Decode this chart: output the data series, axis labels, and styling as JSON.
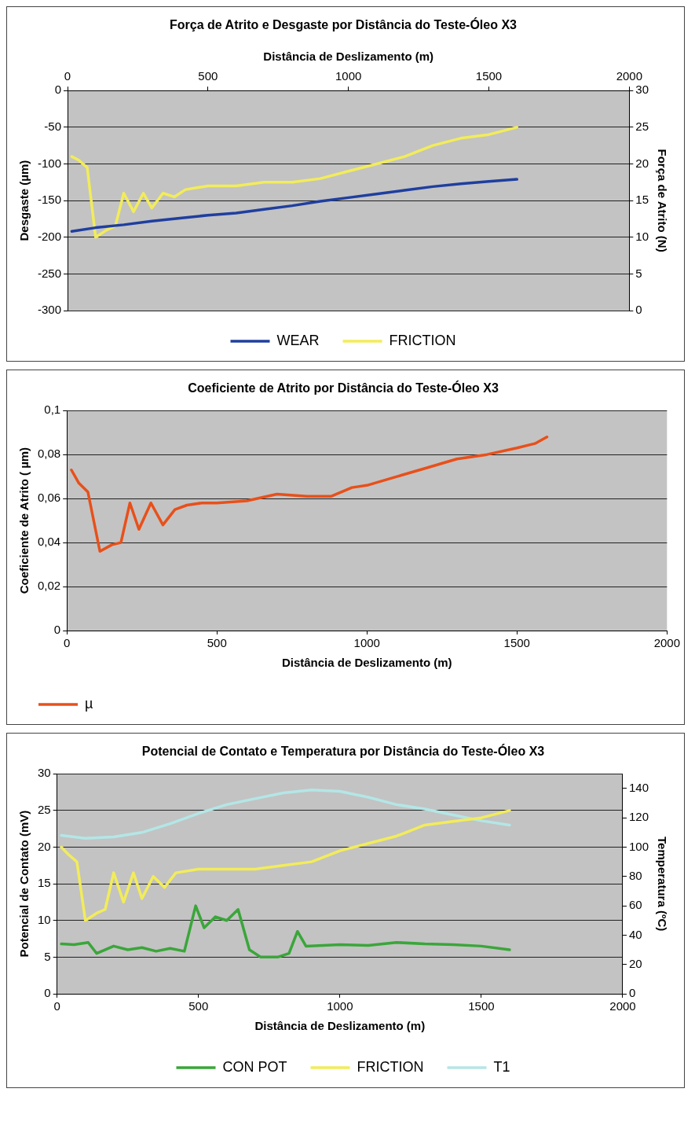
{
  "chart_data": [
    {
      "type": "line",
      "title": "Força de Atrito e Desgaste por Distância do Teste-Óleo X3",
      "xlabel": "Distância de Deslizamento (m)",
      "ylabel": "Desgaste (µm)",
      "y2label": "Força de Atrito (N)",
      "xlim": [
        0,
        2000
      ],
      "xticks": [
        0,
        500,
        1000,
        1500,
        2000
      ],
      "ylim": [
        -300,
        0
      ],
      "yticks": [
        -300,
        -250,
        -200,
        -150,
        -100,
        -50,
        0
      ],
      "y2lim": [
        0,
        30
      ],
      "y2ticks": [
        0,
        5,
        10,
        15,
        20,
        25,
        30
      ],
      "grid": "y",
      "legend": "bottom",
      "marker": "none",
      "line_style": "solid",
      "series": [
        {
          "name": "WEAR",
          "color": "#1f3f9f",
          "x": [
            15,
            100,
            200,
            300,
            400,
            500,
            600,
            700,
            800,
            900,
            1000,
            1100,
            1200,
            1300,
            1400,
            1500,
            1600
          ],
          "values": [
            -192,
            -187,
            -183,
            -178,
            -174,
            -170,
            -167,
            -162,
            -157,
            -151,
            -146,
            -141,
            -136,
            -131,
            -127,
            -124,
            -121
          ]
        },
        {
          "name": "FRICTION",
          "color": "#f2ec5a",
          "axis": "y2",
          "x": [
            15,
            40,
            70,
            100,
            140,
            170,
            200,
            235,
            270,
            300,
            340,
            380,
            420,
            500,
            600,
            700,
            800,
            900,
            1000,
            1100,
            1200,
            1300,
            1400,
            1500,
            1600
          ],
          "values": [
            21,
            20.5,
            19.5,
            10,
            11,
            11.5,
            16,
            13.5,
            16,
            14,
            16,
            15.5,
            16.5,
            17,
            17,
            17.5,
            17.5,
            18,
            19,
            20,
            21,
            22.5,
            23.5,
            24,
            25
          ]
        }
      ]
    },
    {
      "type": "line",
      "title": "Coeficiente de Atrito por Distância do Teste-Óleo X3",
      "xlabel": "Distância de Deslizamento (m)",
      "ylabel": "Coeficiente de Atrito ( µm)",
      "xlim": [
        0,
        2000
      ],
      "xticks": [
        0,
        500,
        1000,
        1500,
        2000
      ],
      "ylim": [
        0,
        0.1
      ],
      "yticks": [
        0,
        {
          "value": 0.02,
          "label": "0,02"
        },
        {
          "value": 0.04,
          "label": "0,04"
        },
        {
          "value": 0.06,
          "label": "0,06"
        },
        {
          "value": 0.08,
          "label": "0,08"
        },
        {
          "value": 0.1,
          "label": "0,1"
        }
      ],
      "grid": "y",
      "legend": "bottom left",
      "marker": "none",
      "line_style": "solid",
      "series": [
        {
          "name": "µ",
          "color": "#e8501a",
          "x": [
            15,
            40,
            70,
            110,
            150,
            180,
            210,
            240,
            280,
            320,
            360,
            400,
            450,
            500,
            600,
            700,
            800,
            880,
            950,
            1000,
            1100,
            1200,
            1300,
            1400,
            1500,
            1560,
            1600
          ],
          "values": [
            0.073,
            0.067,
            0.063,
            0.036,
            0.039,
            0.04,
            0.058,
            0.046,
            0.058,
            0.048,
            0.055,
            0.057,
            0.058,
            0.058,
            0.059,
            0.062,
            0.061,
            0.061,
            0.065,
            0.066,
            0.07,
            0.074,
            0.078,
            0.08,
            0.083,
            0.085,
            0.088
          ]
        }
      ]
    },
    {
      "type": "line",
      "title": "Potencial de Contato e Temperatura por Distância do Teste-Óleo X3",
      "xlabel": "Distância de Deslizamento (m)",
      "ylabel": "Potencial de Contato (mV)",
      "y2label": "Temperatura (ºC)",
      "xlim": [
        0,
        2000
      ],
      "xticks": [
        0,
        500,
        1000,
        1500,
        2000
      ],
      "ylim": [
        0,
        30
      ],
      "yticks": [
        0,
        5,
        10,
        15,
        20,
        25,
        30
      ],
      "y2lim": [
        0,
        150
      ],
      "y2ticks": [
        0,
        20,
        40,
        60,
        80,
        100,
        120,
        140
      ],
      "grid": "y",
      "legend": "bottom",
      "marker": "none",
      "line_style": "solid",
      "series": [
        {
          "name": "CON POT",
          "color": "#3aa63a",
          "x": [
            15,
            60,
            110,
            140,
            200,
            250,
            300,
            350,
            400,
            450,
            490,
            520,
            560,
            600,
            640,
            680,
            720,
            780,
            820,
            850,
            880,
            1000,
            1100,
            1200,
            1300,
            1400,
            1500,
            1600
          ],
          "values": [
            6.8,
            6.7,
            7,
            5.5,
            6.5,
            6,
            6.3,
            5.8,
            6.2,
            5.8,
            12,
            9,
            10.5,
            10,
            11.5,
            6,
            5,
            5,
            5.5,
            8.5,
            6.5,
            6.7,
            6.6,
            7,
            6.8,
            6.7,
            6.5,
            6
          ]
        },
        {
          "name": "FRICTION",
          "color": "#f2ec5a",
          "x": [
            15,
            40,
            70,
            100,
            140,
            170,
            200,
            235,
            270,
            300,
            340,
            380,
            420,
            500,
            600,
            700,
            800,
            900,
            1000,
            1100,
            1200,
            1300,
            1400,
            1500,
            1600
          ],
          "values": [
            20,
            19,
            18,
            10,
            11,
            11.5,
            16.5,
            12.5,
            16.5,
            13,
            16,
            14.5,
            16.5,
            17,
            17,
            17,
            17.5,
            18,
            19.5,
            20.5,
            21.5,
            23,
            23.5,
            24,
            25
          ]
        },
        {
          "name": "T1",
          "color": "#b4e6e6",
          "axis": "y2",
          "x": [
            15,
            100,
            200,
            300,
            400,
            500,
            600,
            700,
            800,
            900,
            1000,
            1100,
            1200,
            1300,
            1400,
            1500,
            1600
          ],
          "values": [
            108,
            106,
            107,
            110,
            116,
            123,
            129,
            133,
            137,
            139,
            138,
            134,
            129,
            126,
            122,
            118,
            115
          ]
        }
      ]
    }
  ]
}
